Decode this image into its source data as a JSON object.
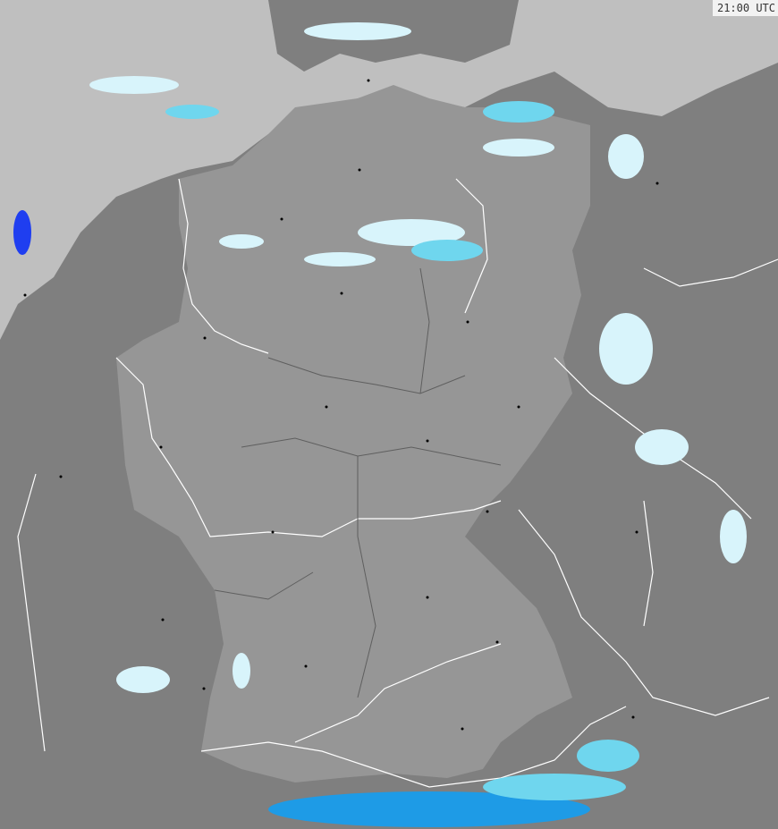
{
  "map": {
    "timestamp": "21:00 UTC",
    "colors": {
      "sea": "#bfbfbf",
      "land_outside": "#7f7f7f",
      "land_germany": "#969696",
      "borders": "#ffffff",
      "precip_light": "#d8f4fb",
      "precip_medium": "#6fd6ee",
      "precip_heavy": "#1e9be6",
      "precip_intense": "#1f3ef0"
    }
  }
}
